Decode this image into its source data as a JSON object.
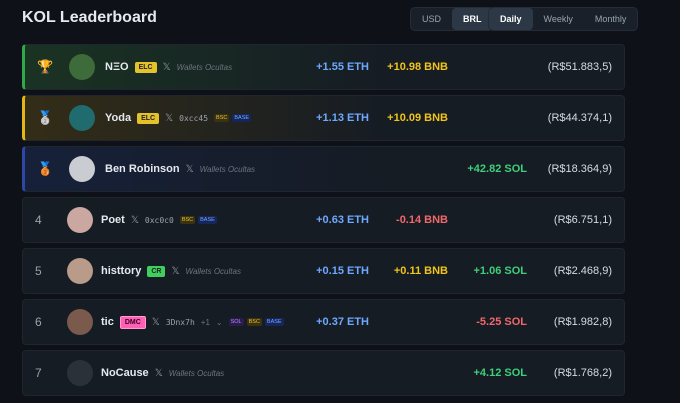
{
  "header": {
    "title": "KOL Leaderboard"
  },
  "toggles": {
    "currency": {
      "options": [
        "USD",
        "BRL"
      ],
      "active": 1
    },
    "period": {
      "options": [
        "Daily",
        "Weekly",
        "Monthly"
      ],
      "active": 0
    }
  },
  "rows": [
    {
      "name": "NΞO",
      "badge": "ELC",
      "wallet": "Wallets Ocultas",
      "eth": "+1.55 ETH",
      "bnb": "+10.98 BNB",
      "total": "(R$51.883,5)"
    },
    {
      "name": "Yoda",
      "badge": "ELC",
      "address": "0xcc45",
      "tags": [
        "BSC",
        "BASE"
      ],
      "eth": "+1.13 ETH",
      "bnb": "+10.09 BNB",
      "total": "(R$44.374,1)"
    },
    {
      "name": "Ben Robinson",
      "wallet": "Wallets Ocultas",
      "sol": "+42.82 SOL",
      "total": "(R$18.364,9)"
    },
    {
      "rank": "4",
      "name": "Poet",
      "address": "0xc0c0",
      "tags": [
        "BSC",
        "BASE"
      ],
      "eth": "+0.63 ETH",
      "bnb": "-0.14 BNB",
      "total": "(R$6.751,1)"
    },
    {
      "rank": "5",
      "name": "histtory",
      "badge": "CR",
      "wallet": "Wallets Ocultas",
      "eth": "+0.15 ETH",
      "bnb": "+0.11 BNB",
      "sol": "+1.06 SOL",
      "total": "(R$2.468,9)"
    },
    {
      "rank": "6",
      "name": "tic",
      "badge": "DMC",
      "address": "3Dnx7h",
      "extra": "+1",
      "tags": [
        "SOL",
        "BSC",
        "BASE"
      ],
      "eth": "+0.37 ETH",
      "sol": "-5.25 SOL",
      "total": "(R$1.982,8)"
    },
    {
      "rank": "7",
      "name": "NoCause",
      "wallet": "Wallets Ocultas",
      "sol": "+4.12 SOL",
      "total": "(R$1.768,2)"
    }
  ]
}
